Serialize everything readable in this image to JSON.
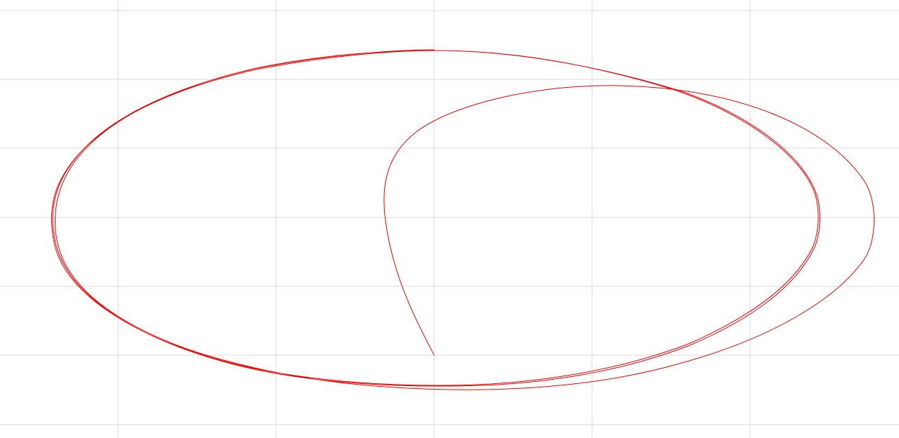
{
  "canvas": {
    "background": "#ffffff",
    "grid_color": "#d9d9d9",
    "grid": true
  },
  "trace": {
    "color": "#ee0000",
    "description_shape": "spiral-orbit"
  }
}
